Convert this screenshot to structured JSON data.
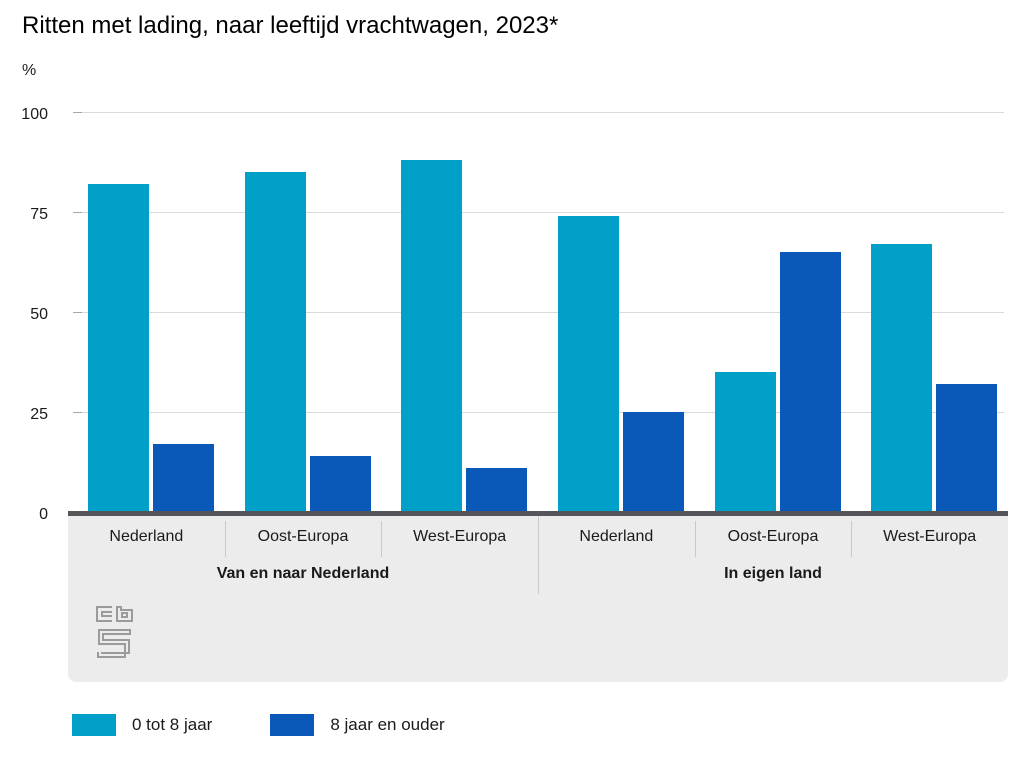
{
  "chart_data": {
    "type": "bar",
    "title": "Ritten met lading, naar leeftijd vrachtwagen, 2023*",
    "ylabel": "%",
    "xlabel": "",
    "ylim": [
      0,
      100
    ],
    "yticks": [
      0,
      25,
      50,
      75,
      100
    ],
    "grid": true,
    "legend_position": "bottom",
    "groups": [
      {
        "label": "Van en naar Nederland",
        "categories": [
          "Nederland",
          "Oost-Europa",
          "West-Europa"
        ]
      },
      {
        "label": "In eigen land",
        "categories": [
          "Nederland",
          "Oost-Europa",
          "West-Europa"
        ]
      }
    ],
    "series": [
      {
        "name": "0 tot 8 jaar",
        "color": "#00a0c8",
        "values": [
          82,
          85,
          88,
          74,
          35,
          67
        ]
      },
      {
        "name": "8 jaar en ouder",
        "color": "#0a58b8",
        "values": [
          17,
          14,
          11,
          25,
          65,
          32
        ]
      }
    ]
  },
  "colors": {
    "series_light_blue": "#00a0c8",
    "series_dark_blue": "#0a58b8",
    "axis_footer_bg": "#ececec",
    "baseline": "#54565a",
    "gridline": "#dadada",
    "logo_gray": "#9b9b9b"
  },
  "footer": {
    "logo": "cbs-logo"
  }
}
